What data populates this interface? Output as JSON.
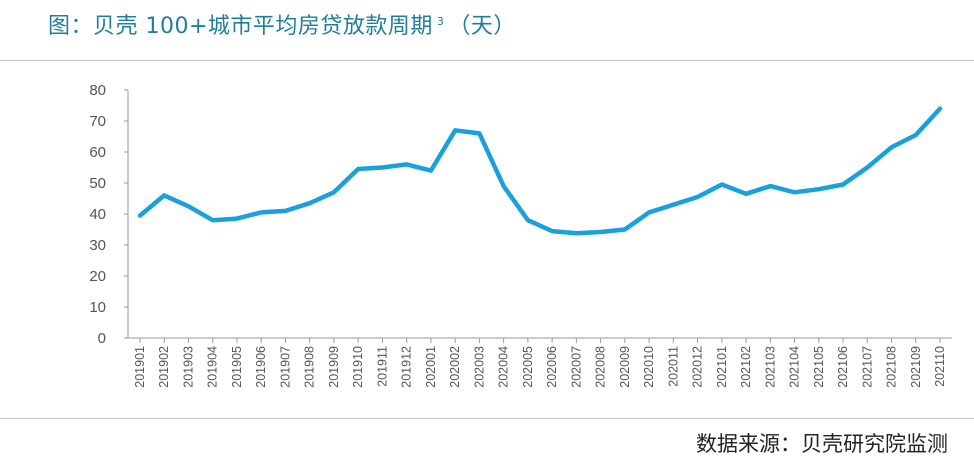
{
  "header": {
    "title_main": "图：贝壳 100+城市平均房贷放款周期",
    "title_sup": "3",
    "title_unit": "（天）"
  },
  "footer": {
    "source": "数据来源：贝壳研究院监测"
  },
  "chart_data": {
    "type": "line",
    "title": "图：贝壳 100+城市平均房贷放款周期 3（天）",
    "xlabel": "",
    "ylabel": "",
    "ylim": [
      0,
      80
    ],
    "yticks": [
      0,
      10,
      20,
      30,
      40,
      50,
      60,
      70,
      80
    ],
    "grid": false,
    "legend": "none",
    "color": "#1aa1dd",
    "categories": [
      "201901",
      "201902",
      "201903",
      "201904",
      "201905",
      "201906",
      "201907",
      "201908",
      "201909",
      "201910",
      "201911",
      "201912",
      "202001",
      "202002",
      "202003",
      "202004",
      "202005",
      "202006",
      "202007",
      "202008",
      "202009",
      "202010",
      "202011",
      "202012",
      "202101",
      "202102",
      "202103",
      "202104",
      "202105",
      "202106",
      "202107",
      "202108",
      "202109",
      "202110"
    ],
    "series": [
      {
        "values": [
          39.5,
          46,
          42.5,
          38,
          38.5,
          40.5,
          41,
          43.5,
          47,
          54.5,
          55,
          56,
          54,
          67,
          66,
          49,
          38,
          34.5,
          33.8,
          34.2,
          35,
          40.5,
          43,
          45.5,
          49.5,
          46.5,
          49,
          47,
          48,
          49.5,
          55,
          61.5,
          65.5,
          74
        ]
      }
    ]
  }
}
